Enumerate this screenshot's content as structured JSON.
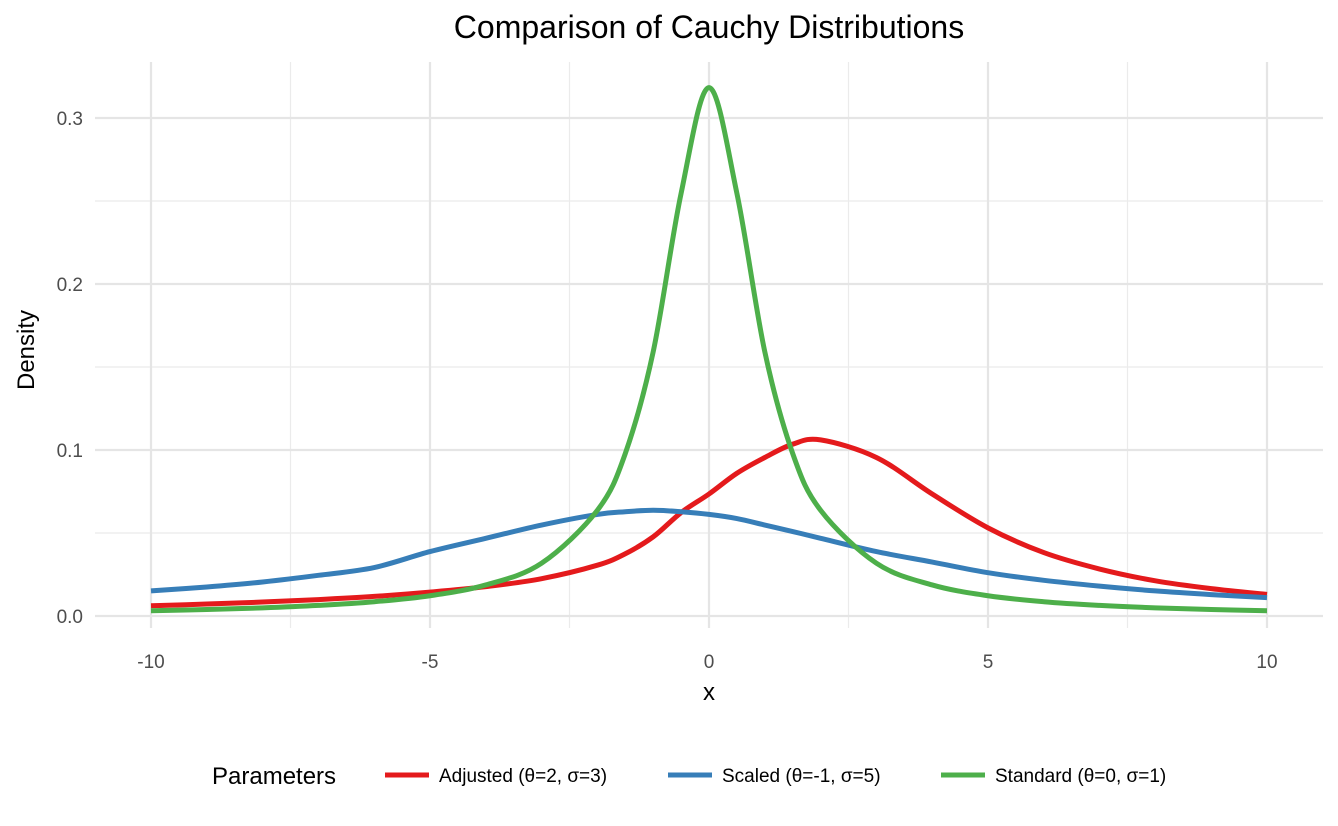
{
  "chart_data": {
    "type": "line",
    "title": "Comparison of Cauchy Distributions",
    "xlabel": "x",
    "ylabel": "Density",
    "xlim": [
      -10,
      10
    ],
    "ylim": [
      0,
      0.32
    ],
    "x_ticks": [
      "-10",
      "-5",
      "0",
      "5",
      "10"
    ],
    "y_ticks": [
      "0.0",
      "0.1",
      "0.2",
      "0.3"
    ],
    "grid": true,
    "legend": {
      "title": "Parameters",
      "position": "bottom"
    },
    "x": [
      -10,
      -9,
      -8,
      -7,
      -6,
      -5,
      -4,
      -3,
      -2,
      -1.5,
      -1,
      -0.5,
      0,
      0.5,
      1,
      1.5,
      2,
      3,
      4,
      5,
      6,
      7,
      8,
      9,
      10
    ],
    "series": [
      {
        "name": "Adjusted (θ=2, σ=3)",
        "color": "#E41A1C",
        "values": [
          0.0062,
          0.0072,
          0.0084,
          0.0099,
          0.0118,
          0.0144,
          0.0177,
          0.0225,
          0.0306,
          0.0375,
          0.0477,
          0.0623,
          0.0735,
          0.086,
          0.0955,
          0.1035,
          0.1061,
          0.0955,
          0.0735,
          0.0531,
          0.0382,
          0.0283,
          0.0212,
          0.0165,
          0.013
        ]
      },
      {
        "name": "Scaled (θ=-1, σ=5)",
        "color": "#377EB8",
        "values": [
          0.0151,
          0.0175,
          0.0205,
          0.0245,
          0.0292,
          0.0388,
          0.0468,
          0.0548,
          0.0612,
          0.0628,
          0.0637,
          0.0628,
          0.0612,
          0.0587,
          0.0548,
          0.0509,
          0.0468,
          0.0388,
          0.0325,
          0.0261,
          0.0215,
          0.018,
          0.0151,
          0.0129,
          0.0111
        ]
      },
      {
        "name": "Standard (θ=0, σ=1)",
        "color": "#4DAF4A",
        "values": [
          0.0032,
          0.0039,
          0.0049,
          0.0064,
          0.0086,
          0.0122,
          0.0187,
          0.0318,
          0.0637,
          0.0979,
          0.1592,
          0.2546,
          0.3183,
          0.2546,
          0.1592,
          0.0979,
          0.0637,
          0.0318,
          0.0187,
          0.0122,
          0.0086,
          0.0064,
          0.0049,
          0.0039,
          0.0032
        ]
      }
    ]
  }
}
